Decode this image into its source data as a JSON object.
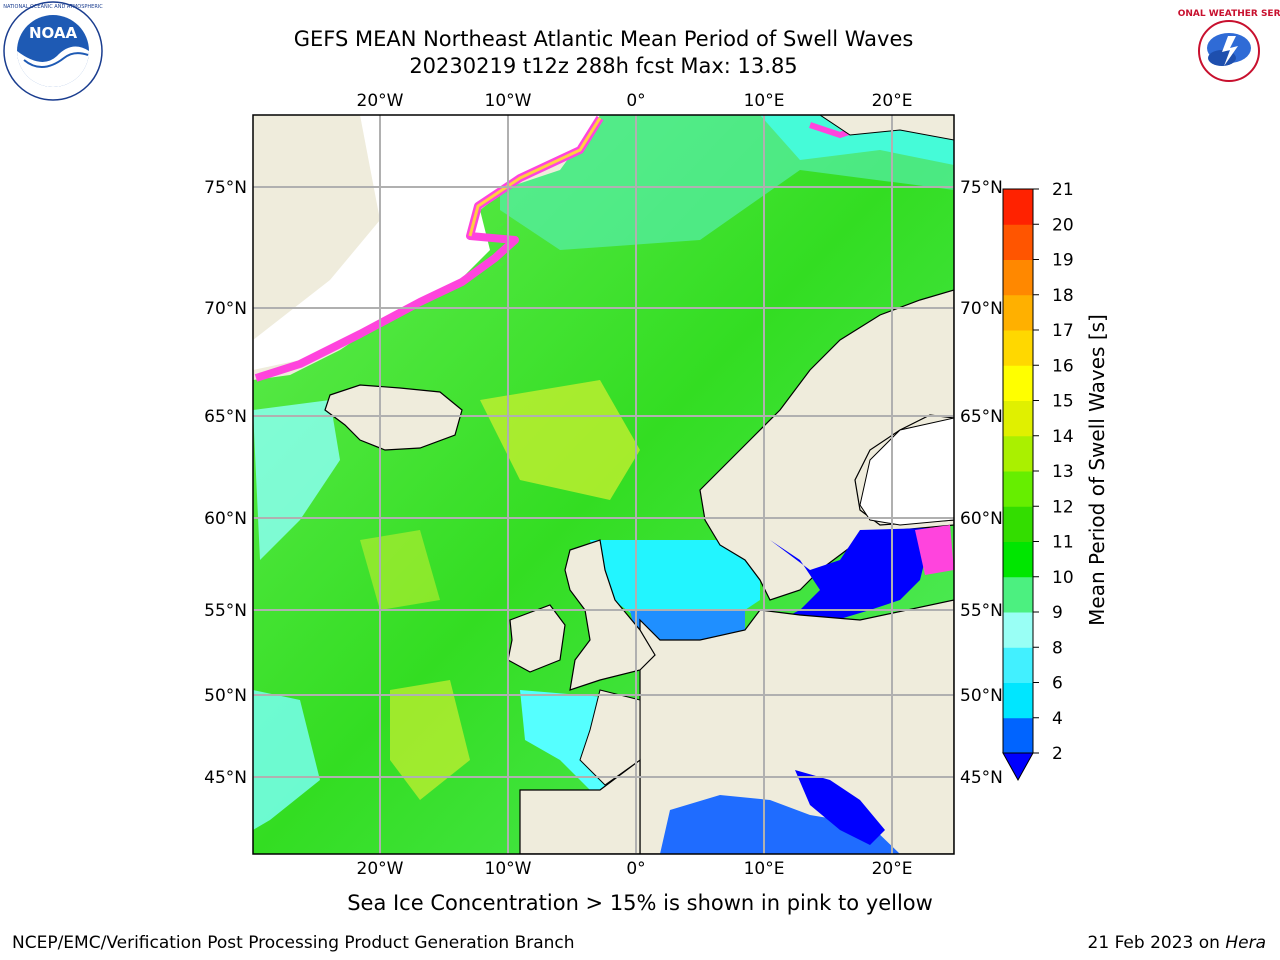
{
  "header": {
    "title": "GEFS MEAN Northeast Atlantic Mean Period of Swell Waves",
    "subtitle": "20230219 t12z 288h fcst   Max: 13.85",
    "logo_left": "NOAA",
    "logo_right": "NATIONAL WEATHER SERVICE"
  },
  "map": {
    "lon_labels": [
      "20°W",
      "10°W",
      "0°",
      "10°E",
      "20°E"
    ],
    "lat_labels": [
      "75°N",
      "70°N",
      "65°N",
      "60°N",
      "55°N",
      "50°N",
      "45°N"
    ],
    "lon_values": [
      -20,
      -10,
      0,
      10,
      20
    ],
    "lat_values": [
      75,
      70,
      65,
      60,
      55,
      50,
      45
    ],
    "colors": {
      "land": "#efecdc",
      "ice_free_white": "#ffffff",
      "grid": "#b0b0b0"
    }
  },
  "colorbar": {
    "label": "Mean Period of Swell Waves [s]",
    "ticks": [
      "21",
      "20",
      "19",
      "18",
      "17",
      "16",
      "15",
      "14",
      "13",
      "12",
      "11",
      "10",
      "9",
      "8",
      "6",
      "4",
      "2"
    ],
    "levels": [
      2,
      4,
      6,
      8,
      9,
      10,
      11,
      12,
      13,
      14,
      15,
      16,
      17,
      18,
      19,
      20,
      21
    ],
    "colors": [
      "#0064ff",
      "#00e6ff",
      "#42f0ff",
      "#99fff5",
      "#4cf080",
      "#00e600",
      "#33dd00",
      "#66ee00",
      "#aaf000",
      "#e0f000",
      "#ffff00",
      "#ffd800",
      "#ffb000",
      "#ff8800",
      "#ff5500",
      "#ff2200"
    ],
    "under_color": "#0000ff"
  },
  "caption": "Sea Ice Concentration > 15% is shown in pink to yellow",
  "footer": {
    "left": "NCEP/EMC/Verification Post Processing Product Generation Branch",
    "right_prefix": "21 Feb 2023 on ",
    "right_host": "Hera"
  }
}
